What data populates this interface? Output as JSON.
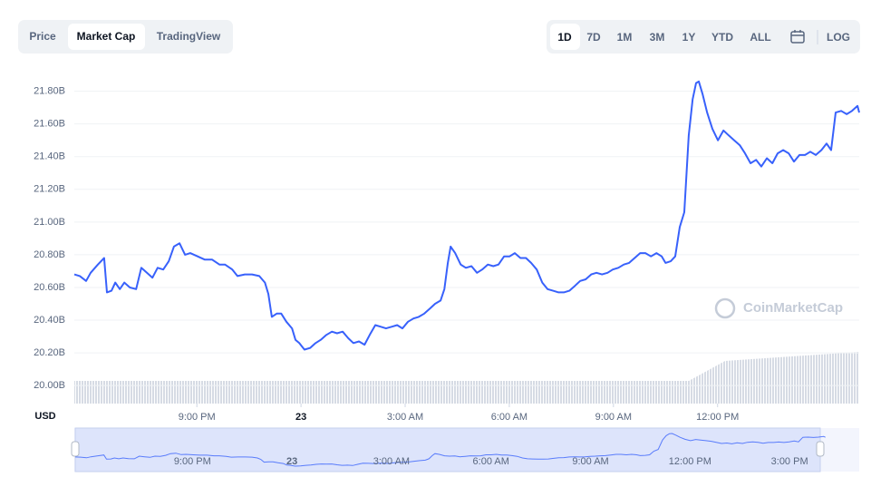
{
  "tabs": [
    "Price",
    "Market Cap",
    "TradingView"
  ],
  "ranges": [
    "1D",
    "7D",
    "1M",
    "3M",
    "1Y",
    "YTD",
    "ALL"
  ],
  "scale_toggle": "LOG",
  "chart_data": {
    "type": "line",
    "currency_label": "USD",
    "watermark": "CoinMarketCap",
    "x": [
      -6.53,
      -6.37,
      -6.19,
      -6.06,
      -5.85,
      -5.67,
      -5.59,
      -5.46,
      -5.35,
      -5.22,
      -5.09,
      -4.93,
      -4.75,
      -4.6,
      -4.44,
      -4.28,
      -4.13,
      -3.97,
      -3.81,
      -3.66,
      -3.5,
      -3.34,
      -3.19,
      -2.98,
      -2.77,
      -2.56,
      -2.35,
      -2.19,
      -1.98,
      -1.83,
      -1.62,
      -1.41,
      -1.2,
      -1.04,
      -0.94,
      -0.84,
      -0.7,
      -0.57,
      -0.42,
      -0.26,
      -0.16,
      -0.05,
      0.1,
      0.26,
      0.42,
      0.57,
      0.73,
      0.89,
      1.04,
      1.2,
      1.36,
      1.51,
      1.67,
      1.83,
      1.98,
      2.14,
      2.3,
      2.45,
      2.61,
      2.77,
      2.92,
      3.08,
      3.24,
      3.39,
      3.55,
      3.71,
      3.86,
      4.02,
      4.13,
      4.23,
      4.31,
      4.44,
      4.6,
      4.75,
      4.91,
      5.07,
      5.22,
      5.38,
      5.54,
      5.69,
      5.85,
      6.01,
      6.16,
      6.32,
      6.48,
      6.63,
      6.79,
      6.95,
      7.1,
      7.26,
      7.42,
      7.57,
      7.73,
      7.89,
      8.04,
      8.2,
      8.36,
      8.51,
      8.67,
      8.83,
      8.98,
      9.14,
      9.3,
      9.45,
      9.61,
      9.77,
      9.92,
      10.08,
      10.24,
      10.39,
      10.5,
      10.65,
      10.78,
      10.91,
      11.04,
      11.17,
      11.28,
      11.38,
      11.46,
      11.57,
      11.7,
      11.85,
      12.01,
      12.17,
      12.32,
      12.48,
      12.64,
      12.79,
      12.95,
      13.11,
      13.26,
      13.42,
      13.58,
      13.73,
      13.89,
      14.05,
      14.2,
      14.36,
      14.52,
      14.67,
      14.83,
      14.99,
      15.14,
      15.27,
      15.4,
      15.56,
      15.72,
      15.87,
      16.03,
      16.08
    ],
    "series": [
      {
        "name": "Market Cap",
        "color": "#3861fb",
        "values": [
          20.68,
          20.67,
          20.64,
          20.69,
          20.74,
          20.78,
          20.57,
          20.58,
          20.63,
          20.59,
          20.63,
          20.6,
          20.59,
          20.72,
          20.69,
          20.66,
          20.72,
          20.71,
          20.76,
          20.85,
          20.87,
          20.8,
          20.81,
          20.79,
          20.77,
          20.77,
          20.74,
          20.74,
          20.71,
          20.67,
          20.68,
          20.68,
          20.67,
          20.63,
          20.56,
          20.42,
          20.44,
          20.44,
          20.39,
          20.35,
          20.28,
          20.26,
          20.22,
          20.23,
          20.26,
          20.28,
          20.31,
          20.33,
          20.32,
          20.33,
          20.29,
          20.26,
          20.27,
          20.25,
          20.31,
          20.37,
          20.36,
          20.35,
          20.36,
          20.37,
          20.35,
          20.39,
          20.41,
          20.42,
          20.44,
          20.47,
          20.5,
          20.52,
          20.59,
          20.75,
          20.85,
          20.81,
          20.74,
          20.72,
          20.73,
          20.69,
          20.71,
          20.74,
          20.73,
          20.74,
          20.79,
          20.79,
          20.81,
          20.78,
          20.78,
          20.75,
          20.71,
          20.63,
          20.59,
          20.58,
          20.57,
          20.57,
          20.58,
          20.61,
          20.64,
          20.65,
          20.68,
          20.69,
          20.68,
          20.69,
          20.71,
          20.72,
          20.74,
          20.75,
          20.78,
          20.81,
          20.81,
          20.79,
          20.81,
          20.79,
          20.75,
          20.76,
          20.79,
          20.97,
          21.06,
          21.53,
          21.75,
          21.85,
          21.86,
          21.78,
          21.67,
          21.57,
          21.5,
          21.56,
          21.53,
          21.5,
          21.47,
          21.42,
          21.36,
          21.38,
          21.34,
          21.39,
          21.36,
          21.42,
          21.44,
          21.42,
          21.37,
          21.41,
          21.41,
          21.43,
          21.41,
          21.44,
          21.48,
          21.44,
          21.67,
          21.68,
          21.66,
          21.68,
          21.71,
          21.67
        ]
      }
    ],
    "xlim": [
      -6.53,
      16.08
    ],
    "ylim": [
      19.89,
      21.87
    ],
    "xticks": [
      {
        "value": -3,
        "label": "9:00 PM"
      },
      {
        "value": 0,
        "label": "23"
      },
      {
        "value": 3,
        "label": "3:00 AM"
      },
      {
        "value": 6,
        "label": "6:00 AM"
      },
      {
        "value": 9,
        "label": "9:00 AM"
      },
      {
        "value": 12,
        "label": "12:00 PM"
      }
    ],
    "yticks": [
      {
        "value": 20.0,
        "label": "20.00B"
      },
      {
        "value": 20.2,
        "label": "20.20B"
      },
      {
        "value": 20.4,
        "label": "20.40B"
      },
      {
        "value": 20.6,
        "label": "20.60B"
      },
      {
        "value": 20.8,
        "label": "20.80B"
      },
      {
        "value": 21.0,
        "label": "21.00B"
      },
      {
        "value": 21.2,
        "label": "21.20B"
      },
      {
        "value": 21.4,
        "label": "21.40B"
      },
      {
        "value": 21.6,
        "label": "21.60B"
      },
      {
        "value": 21.8,
        "label": "21.80B"
      }
    ],
    "grid": true,
    "navigator": {
      "xlim": [
        -6.56,
        17.1
      ],
      "xticks": [
        {
          "value": -3,
          "label": "9:00 PM"
        },
        {
          "value": 0,
          "label": "23"
        },
        {
          "value": 3,
          "label": "3:00 AM"
        },
        {
          "value": 6,
          "label": "6:00 AM"
        },
        {
          "value": 9,
          "label": "9:00 AM"
        },
        {
          "value": 12,
          "label": "12:00 PM"
        },
        {
          "value": 15,
          "label": "3:00 PM"
        }
      ]
    }
  }
}
